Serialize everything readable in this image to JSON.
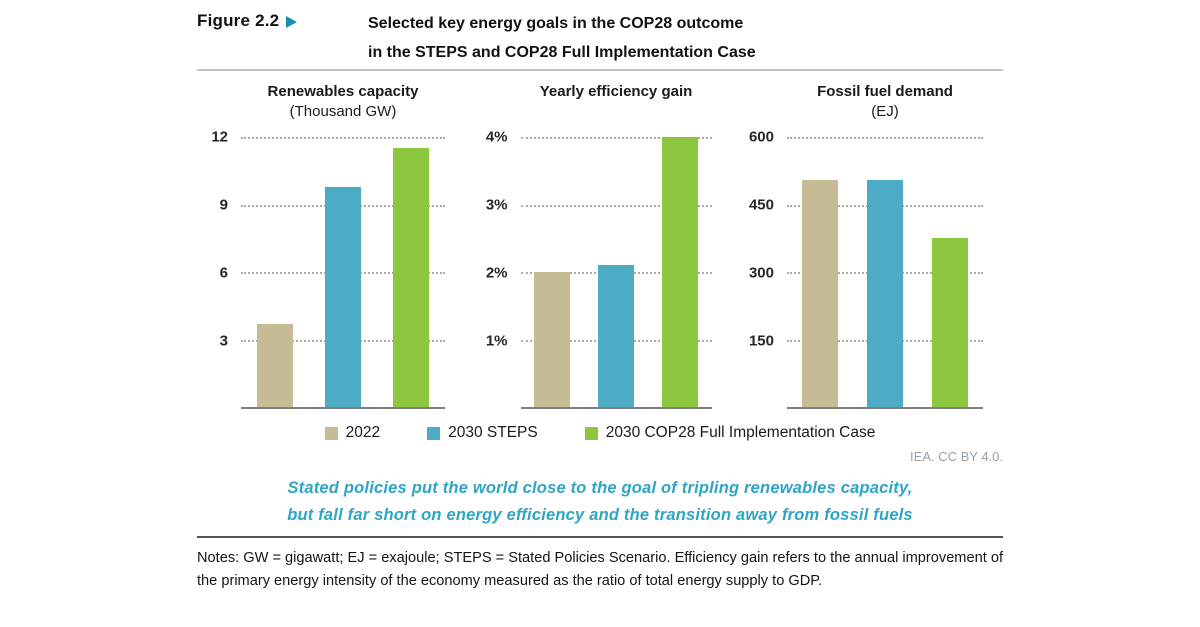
{
  "figure": {
    "label": "Figure 2.2",
    "title_line1": "Selected key energy goals in the COP28 outcome",
    "title_line2": "in the STEPS and COP28 Full Implementation Case"
  },
  "legend": [
    {
      "label": "2022",
      "color": "#c5bc96"
    },
    {
      "label": "2030 STEPS",
      "color": "#4cacc6"
    },
    {
      "label": "2030 COP28 Full Implementation Case",
      "color": "#8dc63f"
    }
  ],
  "attribution": {
    "text": "IEA. CC BY 4.0."
  },
  "statement": {
    "line1": "Stated policies put the world close to the goal of tripling renewables capacity,",
    "line2": "but fall far short on energy efficiency and the transition away from fossil fuels"
  },
  "notes": {
    "text": "Notes: GW = gigawatt; EJ = exajoule; STEPS = Stated Policies Scenario. Efficiency gain refers to the annual improvement of the primary energy intensity of the economy measured as the ratio of total energy supply to GDP."
  },
  "colors": {
    "bar_2022": "#c5bc96",
    "bar_2030_steps": "#4cacc6",
    "bar_2030_cop28": "#8dc63f",
    "statement_teal": "#2ea4c6",
    "figure_marker_teal": "#1d8cae",
    "gridline_gray": "#ababab",
    "axis_gray": "#7f7f7f"
  },
  "chart_data": [
    {
      "type": "bar",
      "title": "Renewables capacity",
      "subtitle": "(Thousand GW)",
      "categories": [
        "2022",
        "2030 STEPS",
        "2030 COP28 Full Implementation Case"
      ],
      "values": [
        3.7,
        9.8,
        11.5
      ],
      "yticks": [
        3,
        6,
        9,
        12
      ],
      "ytick_labels": [
        "3",
        "6",
        "9",
        "12"
      ],
      "ylim": [
        0,
        12
      ],
      "grid": "horizontal-dotted",
      "legend_position": "bottom-shared"
    },
    {
      "type": "bar",
      "title": "Yearly efficiency gain",
      "subtitle": "",
      "categories": [
        "2022",
        "2030 STEPS",
        "2030 COP28 Full Implementation Case"
      ],
      "values": [
        2.0,
        2.1,
        4.0
      ],
      "yticks": [
        1,
        2,
        3,
        4
      ],
      "ytick_labels": [
        "1%",
        "2%",
        "3%",
        "4%"
      ],
      "ylim": [
        0,
        4
      ],
      "grid": "horizontal-dotted",
      "legend_position": "bottom-shared"
    },
    {
      "type": "bar",
      "title": "Fossil fuel demand",
      "subtitle": "(EJ)",
      "categories": [
        "2022",
        "2030 STEPS",
        "2030 COP28 Full Implementation Case"
      ],
      "values": [
        505,
        505,
        375
      ],
      "yticks": [
        150,
        300,
        450,
        600
      ],
      "ytick_labels": [
        "150",
        "300",
        "450",
        "600"
      ],
      "ylim": [
        0,
        600
      ],
      "grid": "horizontal-dotted",
      "legend_position": "bottom-shared"
    }
  ]
}
